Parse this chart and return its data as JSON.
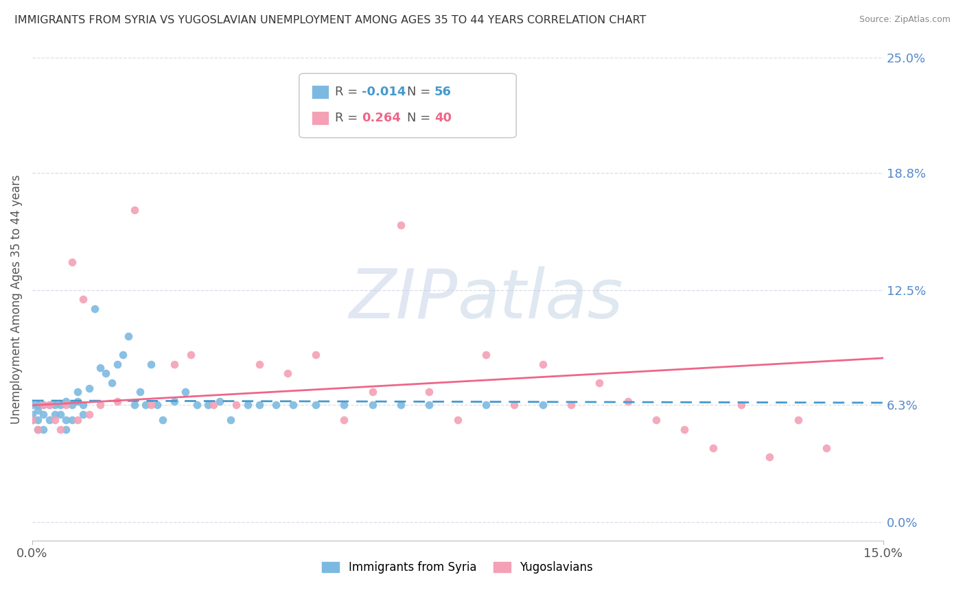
{
  "title": "IMMIGRANTS FROM SYRIA VS YUGOSLAVIAN UNEMPLOYMENT AMONG AGES 35 TO 44 YEARS CORRELATION CHART",
  "source": "Source: ZipAtlas.com",
  "ylabel": "Unemployment Among Ages 35 to 44 years",
  "legend_label1": "Immigrants from Syria",
  "legend_label2": "Yugoslavians",
  "r1": "-0.014",
  "n1": "56",
  "r2": "0.264",
  "n2": "40",
  "color_blue": "#7cb9e0",
  "color_pink": "#f4a0b5",
  "color_blue_line": "#4499cc",
  "color_pink_line": "#ee6688",
  "background_color": "#ffffff",
  "grid_color": "#d8dde8",
  "xmin": 0.0,
  "xmax": 0.15,
  "ymin": -0.01,
  "ymax": 0.25,
  "ytick_vals": [
    0.0,
    0.063,
    0.125,
    0.188,
    0.25
  ],
  "ytick_labels": [
    "0.0%",
    "6.3%",
    "12.5%",
    "18.8%",
    "25.0%"
  ],
  "syria_x": [
    0.0,
    0.0,
    0.0,
    0.001,
    0.001,
    0.001,
    0.001,
    0.002,
    0.002,
    0.002,
    0.003,
    0.003,
    0.004,
    0.004,
    0.005,
    0.005,
    0.006,
    0.006,
    0.006,
    0.007,
    0.007,
    0.008,
    0.008,
    0.009,
    0.009,
    0.01,
    0.011,
    0.012,
    0.013,
    0.014,
    0.015,
    0.016,
    0.017,
    0.018,
    0.019,
    0.02,
    0.021,
    0.022,
    0.023,
    0.025,
    0.027,
    0.029,
    0.031,
    0.033,
    0.035,
    0.038,
    0.04,
    0.043,
    0.046,
    0.05,
    0.055,
    0.06,
    0.065,
    0.07,
    0.08,
    0.09
  ],
  "syria_y": [
    0.063,
    0.058,
    0.055,
    0.063,
    0.06,
    0.055,
    0.05,
    0.063,
    0.058,
    0.05,
    0.063,
    0.055,
    0.063,
    0.058,
    0.063,
    0.058,
    0.065,
    0.055,
    0.05,
    0.063,
    0.055,
    0.065,
    0.07,
    0.063,
    0.058,
    0.072,
    0.115,
    0.083,
    0.08,
    0.075,
    0.085,
    0.09,
    0.1,
    0.063,
    0.07,
    0.063,
    0.085,
    0.063,
    0.055,
    0.065,
    0.07,
    0.063,
    0.063,
    0.065,
    0.055,
    0.063,
    0.063,
    0.063,
    0.063,
    0.063,
    0.063,
    0.063,
    0.063,
    0.063,
    0.063,
    0.063
  ],
  "yugo_x": [
    0.0,
    0.001,
    0.002,
    0.003,
    0.004,
    0.005,
    0.006,
    0.007,
    0.008,
    0.009,
    0.01,
    0.012,
    0.015,
    0.018,
    0.021,
    0.025,
    0.028,
    0.032,
    0.036,
    0.04,
    0.045,
    0.05,
    0.055,
    0.06,
    0.065,
    0.07,
    0.075,
    0.08,
    0.085,
    0.09,
    0.095,
    0.1,
    0.105,
    0.11,
    0.115,
    0.12,
    0.125,
    0.13,
    0.135,
    0.14
  ],
  "yugo_y": [
    0.055,
    0.05,
    0.063,
    0.063,
    0.055,
    0.05,
    0.063,
    0.14,
    0.055,
    0.12,
    0.058,
    0.063,
    0.065,
    0.168,
    0.063,
    0.085,
    0.09,
    0.063,
    0.063,
    0.085,
    0.08,
    0.09,
    0.055,
    0.07,
    0.16,
    0.07,
    0.055,
    0.09,
    0.063,
    0.085,
    0.063,
    0.075,
    0.065,
    0.055,
    0.05,
    0.04,
    0.063,
    0.035,
    0.055,
    0.04
  ]
}
